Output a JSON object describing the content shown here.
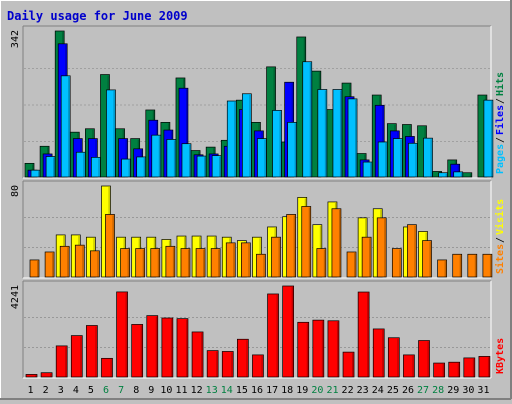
{
  "chart_data": {
    "title": "Daily usage for June 2009",
    "type": "bar",
    "categories": [
      "1",
      "2",
      "3",
      "4",
      "5",
      "6",
      "7",
      "8",
      "9",
      "10",
      "11",
      "12",
      "13",
      "14",
      "15",
      "16",
      "17",
      "18",
      "19",
      "20",
      "21",
      "22",
      "23",
      "24",
      "25",
      "26",
      "27",
      "28",
      "29",
      "30",
      "31"
    ],
    "weekend_categories": [
      "6",
      "7",
      "13",
      "14",
      "20",
      "21",
      "27",
      "28"
    ],
    "colors": {
      "background": "#c0c0c0",
      "plot_bg": "#c0c0c0",
      "title": "#0000cc",
      "pages": "#00c0ff",
      "files": "#0000ff",
      "hits": "#008040",
      "sites": "#ff8000",
      "visits": "#ffff00",
      "kbytes": "#ff0000",
      "weekend_label": "#008040",
      "weekday_label": "#000000"
    },
    "panels": [
      {
        "id": "hits-files-pages",
        "max_label": "342",
        "ylim": [
          0,
          342
        ],
        "legend": [
          {
            "name": "Pages",
            "color": "#00c0ff"
          },
          {
            "name": "Files",
            "color": "#0000ff"
          },
          {
            "name": "Hits",
            "color": "#008040"
          }
        ],
        "series": [
          {
            "name": "Hits",
            "color": "#008040",
            "values": [
              32,
              72,
              342,
              105,
              113,
              240,
              113,
              90,
              157,
              128,
              232,
              62,
              70,
              86,
              180,
              128,
              258,
              82,
              328,
              248,
              158,
              220,
              55,
              192,
              125,
              123,
              120,
              13,
              40,
              10,
              192
            ]
          },
          {
            "name": "Files",
            "color": "#0000ff",
            "values": [
              16,
              54,
              312,
              90,
              90,
              0,
              90,
              66,
              133,
              110,
              208,
              52,
              54,
              72,
              158,
              108,
              0,
              222,
              0,
              0,
              0,
              188,
              40,
              168,
              108,
              95,
              0,
              0,
              30,
              0,
              0
            ]
          },
          {
            "name": "Pages",
            "color": "#00c0ff",
            "values": [
              16,
              48,
              237,
              58,
              46,
              204,
              42,
              47,
              98,
              88,
              78,
              49,
              50,
              178,
              195,
              90,
              156,
              128,
              270,
              205,
              205,
              183,
              35,
              82,
              90,
              79,
              91,
              10,
              12,
              0,
              180
            ]
          }
        ]
      },
      {
        "id": "visits-sites",
        "max_label": "80",
        "ylim": [
          0,
          80
        ],
        "legend": [
          {
            "name": "Sites",
            "color": "#ff8000"
          },
          {
            "name": "Visits",
            "color": "#ffff00"
          }
        ],
        "series": [
          {
            "name": "Visits",
            "color": "#ffff00",
            "values": [
              0,
              0,
              37,
              37,
              35,
              80,
              35,
              35,
              35,
              33,
              36,
              36,
              36,
              35,
              32,
              35,
              44,
              53,
              70,
              46,
              66,
              0,
              52,
              60,
              0,
              44,
              40,
              0,
              0,
              0,
              0
            ]
          },
          {
            "name": "Sites",
            "color": "#ff8000",
            "values": [
              15,
              22,
              27,
              28,
              23,
              55,
              25,
              25,
              25,
              27,
              25,
              25,
              25,
              30,
              30,
              20,
              35,
              55,
              62,
              25,
              60,
              22,
              35,
              52,
              25,
              46,
              32,
              15,
              20,
              20,
              20
            ]
          }
        ]
      },
      {
        "id": "kbytes",
        "max_label": "4241",
        "ylim": [
          0,
          4241
        ],
        "legend": [
          {
            "name": "KBytes",
            "color": "#ff0000"
          }
        ],
        "series": [
          {
            "name": "KBytes",
            "color": "#ff0000",
            "values": [
              120,
              200,
              1450,
              1930,
              2400,
              870,
              3965,
              2450,
              2860,
              2750,
              2720,
              2100,
              1230,
              1190,
              1760,
              1030,
              3870,
              4241,
              2550,
              2650,
              2620,
              1160,
              3960,
              2240,
              1830,
              1030,
              1700,
              650,
              690,
              890,
              960
            ]
          }
        ]
      }
    ]
  }
}
